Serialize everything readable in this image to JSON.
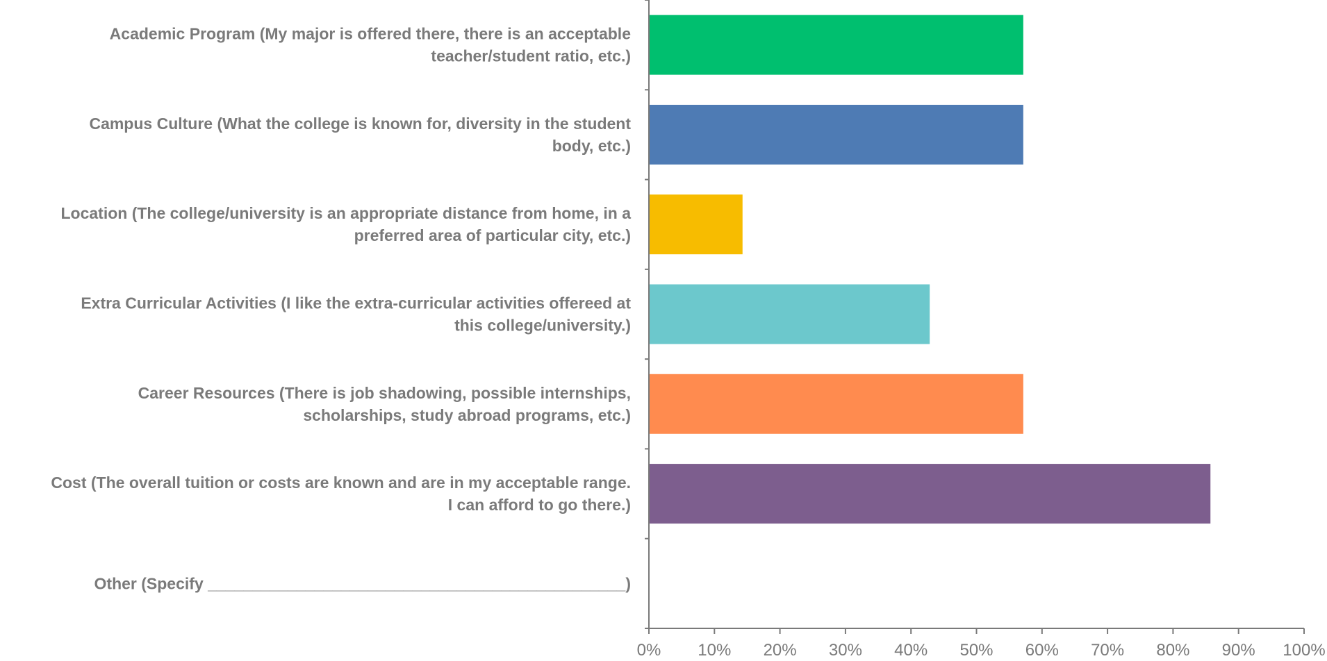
{
  "chart_data": {
    "type": "bar",
    "orientation": "horizontal",
    "title": "",
    "xlabel": "",
    "ylabel": "",
    "categories": [
      {
        "label": "Academic Program (My major is offered there, there is an acceptable teacher/student ratio, etc.)",
        "lines": [
          "Academic Program (My major is offered there, there is an acceptable",
          "teacher/student ratio, etc.)"
        ]
      },
      {
        "label": "Campus Culture (What the college is known for, diversity in the student body, etc.)",
        "lines": [
          "Campus Culture (What the college is known for, diversity in the student",
          "body, etc.)"
        ]
      },
      {
        "label": "Location (The college/university is an appropriate distance from home, in a preferred area of particular city, etc.)",
        "lines": [
          "Location (The college/university is an appropriate distance from home, in a",
          "preferred area of particular city, etc.)"
        ]
      },
      {
        "label": "Extra Curricular Activities (I like the extra-curricular activities offereed at this college/university.)",
        "lines": [
          "Extra Curricular Activities (I like the extra-curricular activities offereed at",
          "this college/university.)"
        ]
      },
      {
        "label": "Career Resources (There is job shadowing, possible internships, scholarships, study abroad programs, etc.)",
        "lines": [
          "Career Resources (There is job shadowing, possible internships,",
          "scholarships, study abroad programs, etc.)"
        ]
      },
      {
        "label": "Cost (The overall tuition or costs are known and are in my acceptable range. I can afford to go there.)",
        "lines": [
          "Cost (The overall tuition or costs are known and are in my acceptable range.",
          "I can afford to go there.)"
        ]
      },
      {
        "label": "Other (Specify _______________________________________________)",
        "lines": [
          "Other (Specify _______________________________________________)"
        ]
      }
    ],
    "values": [
      0.5714,
      0.5714,
      0.1429,
      0.4286,
      0.5714,
      0.8571,
      0
    ],
    "colors": [
      "#00BF6F",
      "#4E7BB4",
      "#F7BC00",
      "#6CC8CC",
      "#FF8B4F",
      "#7D5E8E",
      "#999999"
    ],
    "xlim": [
      0,
      1
    ],
    "xticks": [
      "0%",
      "10%",
      "20%",
      "30%",
      "40%",
      "50%",
      "60%",
      "70%",
      "80%",
      "90%",
      "100%"
    ],
    "grid": false,
    "legend": "none",
    "axis_color": "#7a7a7a",
    "label_color": "#7a7a7a"
  }
}
